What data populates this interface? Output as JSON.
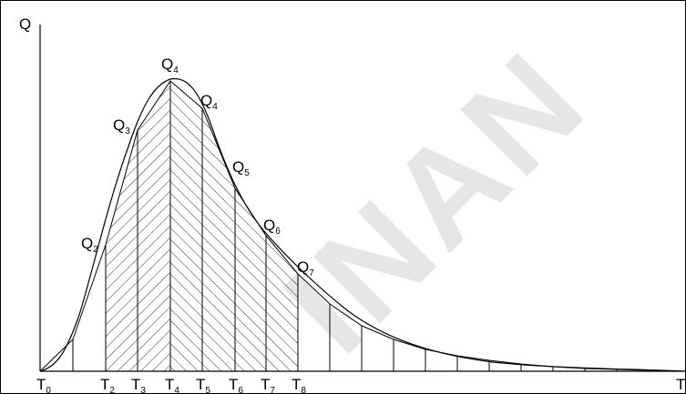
{
  "watermark": "INAN",
  "axes": {
    "y_label": "Q",
    "x_label": "T"
  },
  "time_labels": [
    {
      "main": "T",
      "sub": "0"
    },
    {
      "main": "T",
      "sub": "2"
    },
    {
      "main": "T",
      "sub": "3"
    },
    {
      "main": "T",
      "sub": "4"
    },
    {
      "main": "T",
      "sub": "5"
    },
    {
      "main": "T",
      "sub": "6"
    },
    {
      "main": "T",
      "sub": "7"
    },
    {
      "main": "T",
      "sub": "8"
    }
  ],
  "flow_labels": [
    {
      "main": "Q",
      "sub": "2"
    },
    {
      "main": "Q",
      "sub": "3"
    },
    {
      "main": "Q",
      "sub": "4"
    },
    {
      "main": "Q",
      "sub": "4"
    },
    {
      "main": "Q",
      "sub": "5"
    },
    {
      "main": "Q",
      "sub": "6"
    },
    {
      "main": "Q",
      "sub": "7"
    }
  ],
  "colors": {
    "line": "#000000",
    "watermark": "#e6e6e6"
  }
}
